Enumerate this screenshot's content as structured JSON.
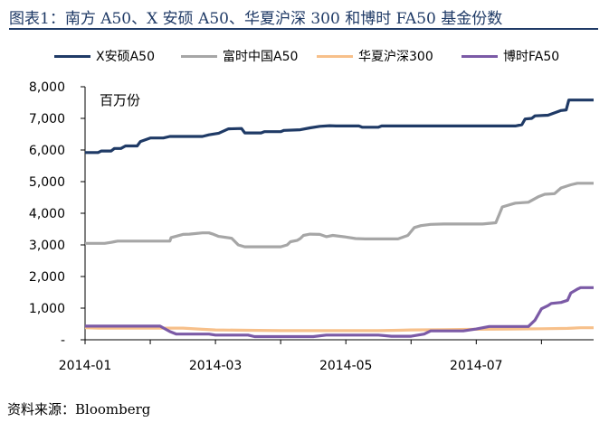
{
  "title": "图表1：南方 A50、X 安硕 A50、华夏沪深 300 和博时 FA50 基金份数",
  "source": "资料来源：Bloomberg",
  "chart_data": {
    "type": "line",
    "unit_label": "百万份",
    "x_tick_labels": [
      "2014-01",
      "2014-03",
      "2014-05",
      "2014-07"
    ],
    "x_tick_months": [
      0,
      2,
      4,
      6
    ],
    "x_range_months": [
      0,
      7.8
    ],
    "ylim": [
      0,
      8000
    ],
    "y_ticks": [
      0,
      1000,
      2000,
      3000,
      4000,
      5000,
      6000,
      7000,
      8000
    ],
    "y_tick_labels": [
      "-",
      "1,000",
      "2,000",
      "3,000",
      "4,000",
      "5,000",
      "6,000",
      "7,000",
      "8,000"
    ],
    "grid": false,
    "legend_position": "top",
    "series": [
      {
        "name": "X安硕A50",
        "color": "#1f3a66",
        "points": [
          [
            0,
            5920
          ],
          [
            0.2,
            5920
          ],
          [
            0.25,
            5970
          ],
          [
            0.4,
            5970
          ],
          [
            0.45,
            6050
          ],
          [
            0.55,
            6050
          ],
          [
            0.62,
            6130
          ],
          [
            0.8,
            6130
          ],
          [
            0.85,
            6270
          ],
          [
            1.0,
            6380
          ],
          [
            1.2,
            6380
          ],
          [
            1.3,
            6430
          ],
          [
            1.55,
            6430
          ],
          [
            1.8,
            6430
          ],
          [
            1.9,
            6480
          ],
          [
            2.05,
            6530
          ],
          [
            2.2,
            6670
          ],
          [
            2.4,
            6680
          ],
          [
            2.45,
            6540
          ],
          [
            2.7,
            6540
          ],
          [
            2.75,
            6580
          ],
          [
            3.0,
            6580
          ],
          [
            3.05,
            6620
          ],
          [
            3.3,
            6640
          ],
          [
            3.45,
            6700
          ],
          [
            3.6,
            6750
          ],
          [
            3.75,
            6770
          ],
          [
            3.85,
            6760
          ],
          [
            4.2,
            6760
          ],
          [
            4.25,
            6720
          ],
          [
            4.5,
            6720
          ],
          [
            4.55,
            6760
          ],
          [
            5.5,
            6760
          ],
          [
            6.6,
            6760
          ],
          [
            6.7,
            6800
          ],
          [
            6.75,
            6980
          ],
          [
            6.85,
            7000
          ],
          [
            6.9,
            7080
          ],
          [
            7.1,
            7100
          ],
          [
            7.3,
            7250
          ],
          [
            7.38,
            7270
          ],
          [
            7.42,
            7580
          ],
          [
            7.8,
            7580
          ]
        ]
      },
      {
        "name": "富时中国A50",
        "color": "#a6a6a6",
        "points": [
          [
            0,
            3050
          ],
          [
            0.3,
            3050
          ],
          [
            0.4,
            3080
          ],
          [
            0.5,
            3120
          ],
          [
            0.9,
            3120
          ],
          [
            1.3,
            3120
          ],
          [
            1.32,
            3230
          ],
          [
            1.5,
            3330
          ],
          [
            1.6,
            3340
          ],
          [
            1.8,
            3380
          ],
          [
            1.9,
            3380
          ],
          [
            1.95,
            3350
          ],
          [
            2.05,
            3270
          ],
          [
            2.25,
            3210
          ],
          [
            2.35,
            3000
          ],
          [
            2.45,
            2940
          ],
          [
            2.7,
            2940
          ],
          [
            3.0,
            2940
          ],
          [
            3.1,
            3000
          ],
          [
            3.15,
            3100
          ],
          [
            3.25,
            3140
          ],
          [
            3.3,
            3200
          ],
          [
            3.35,
            3300
          ],
          [
            3.45,
            3340
          ],
          [
            3.6,
            3330
          ],
          [
            3.7,
            3260
          ],
          [
            3.8,
            3300
          ],
          [
            4.0,
            3250
          ],
          [
            4.15,
            3200
          ],
          [
            4.3,
            3190
          ],
          [
            4.8,
            3190
          ],
          [
            4.95,
            3300
          ],
          [
            5.05,
            3550
          ],
          [
            5.15,
            3610
          ],
          [
            5.3,
            3650
          ],
          [
            5.5,
            3660
          ],
          [
            6.1,
            3660
          ],
          [
            6.3,
            3700
          ],
          [
            6.35,
            3950
          ],
          [
            6.4,
            4200
          ],
          [
            6.55,
            4290
          ],
          [
            6.6,
            4320
          ],
          [
            6.8,
            4350
          ],
          [
            6.95,
            4520
          ],
          [
            7.05,
            4600
          ],
          [
            7.2,
            4620
          ],
          [
            7.3,
            4800
          ],
          [
            7.45,
            4900
          ],
          [
            7.55,
            4950
          ],
          [
            7.8,
            4950
          ]
        ]
      },
      {
        "name": "华夏沪深300",
        "color": "#f7c08a",
        "points": [
          [
            0,
            380
          ],
          [
            0.2,
            370
          ],
          [
            0.5,
            370
          ],
          [
            1.0,
            370
          ],
          [
            1.5,
            370
          ],
          [
            1.8,
            330
          ],
          [
            2.0,
            310
          ],
          [
            2.5,
            300
          ],
          [
            3.0,
            290
          ],
          [
            3.5,
            290
          ],
          [
            4.0,
            290
          ],
          [
            4.5,
            290
          ],
          [
            4.8,
            300
          ],
          [
            5.0,
            310
          ],
          [
            5.5,
            320
          ],
          [
            6.0,
            330
          ],
          [
            6.5,
            340
          ],
          [
            7.0,
            350
          ],
          [
            7.4,
            360
          ],
          [
            7.6,
            380
          ],
          [
            7.8,
            380
          ]
        ]
      },
      {
        "name": "博时FA50",
        "color": "#7b5aa6",
        "points": [
          [
            0,
            430
          ],
          [
            0.5,
            430
          ],
          [
            1.0,
            430
          ],
          [
            1.15,
            430
          ],
          [
            1.3,
            260
          ],
          [
            1.4,
            180
          ],
          [
            1.7,
            180
          ],
          [
            1.9,
            180
          ],
          [
            2.0,
            150
          ],
          [
            2.5,
            150
          ],
          [
            2.6,
            100
          ],
          [
            3.5,
            100
          ],
          [
            3.7,
            150
          ],
          [
            4.0,
            150
          ],
          [
            4.5,
            150
          ],
          [
            4.7,
            110
          ],
          [
            5.0,
            110
          ],
          [
            5.2,
            180
          ],
          [
            5.3,
            280
          ],
          [
            5.5,
            280
          ],
          [
            5.8,
            280
          ],
          [
            6.0,
            340
          ],
          [
            6.2,
            420
          ],
          [
            6.5,
            420
          ],
          [
            6.8,
            420
          ],
          [
            6.9,
            620
          ],
          [
            7.0,
            980
          ],
          [
            7.1,
            1080
          ],
          [
            7.15,
            1150
          ],
          [
            7.3,
            1180
          ],
          [
            7.4,
            1250
          ],
          [
            7.45,
            1480
          ],
          [
            7.55,
            1600
          ],
          [
            7.6,
            1650
          ],
          [
            7.8,
            1650
          ]
        ]
      }
    ]
  }
}
